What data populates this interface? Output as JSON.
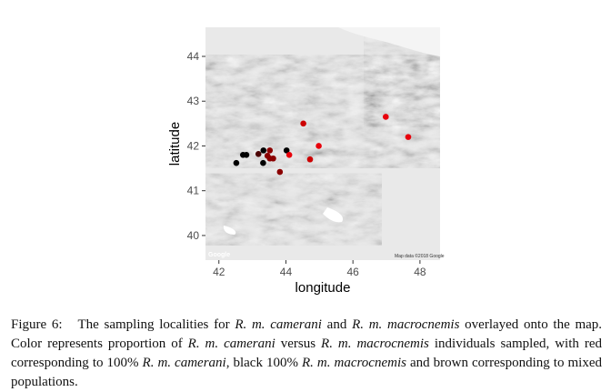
{
  "chart_data": {
    "type": "scatter",
    "xlabel": "longitude",
    "ylabel": "latitude",
    "xlim": [
      41.6,
      48.6
    ],
    "ylim": [
      39.45,
      44.65
    ],
    "x_ticks": [
      42,
      44,
      46,
      48
    ],
    "y_ticks": [
      40,
      41,
      42,
      43,
      44
    ],
    "background": "terrain map",
    "map_attribution": "Map data ©2018 Google",
    "logo_text": "Google",
    "colors": {
      "red": "#e8000b",
      "black": "#000000",
      "brown": "#8b0000"
    },
    "points": [
      {
        "x": 42.52,
        "y": 41.62,
        "color": "#000000"
      },
      {
        "x": 42.72,
        "y": 41.8,
        "color": "#000000"
      },
      {
        "x": 42.82,
        "y": 41.8,
        "color": "#000000"
      },
      {
        "x": 43.18,
        "y": 41.82,
        "color": "#4a0000"
      },
      {
        "x": 43.33,
        "y": 41.9,
        "color": "#000000"
      },
      {
        "x": 43.32,
        "y": 41.62,
        "color": "#000000"
      },
      {
        "x": 43.45,
        "y": 41.78,
        "color": "#8b0000"
      },
      {
        "x": 43.52,
        "y": 41.9,
        "color": "#8b0000"
      },
      {
        "x": 43.52,
        "y": 41.72,
        "color": "#8b0000"
      },
      {
        "x": 43.62,
        "y": 41.72,
        "color": "#8b0000"
      },
      {
        "x": 43.82,
        "y": 41.42,
        "color": "#8b0000"
      },
      {
        "x": 44.02,
        "y": 41.9,
        "color": "#000000"
      },
      {
        "x": 44.1,
        "y": 41.8,
        "color": "#e8000b"
      },
      {
        "x": 44.52,
        "y": 42.5,
        "color": "#cc0000"
      },
      {
        "x": 44.72,
        "y": 41.7,
        "color": "#cc0000"
      },
      {
        "x": 44.98,
        "y": 42.0,
        "color": "#e8000b"
      },
      {
        "x": 46.98,
        "y": 42.65,
        "color": "#e8000b"
      },
      {
        "x": 47.65,
        "y": 42.2,
        "color": "#e8000b"
      }
    ]
  },
  "caption": {
    "label": "Figure 6:",
    "part1": "The sampling localities for",
    "species1": "R. m. camerani",
    "part2": "and",
    "species2": "R. m. macrocnemis",
    "part3": "overlayed onto the map. Color represents proportion of",
    "species3": "R. m. camerani",
    "part4": "versus",
    "species4": "R. m. macrocnemis",
    "part5": "individuals sampled, with red corresponding to 100%",
    "species5": "R. m. camerani",
    "part6": ", black 100%",
    "species6": "R. m. macrocnemis",
    "part7": "and brown corresponding to mixed populations."
  }
}
